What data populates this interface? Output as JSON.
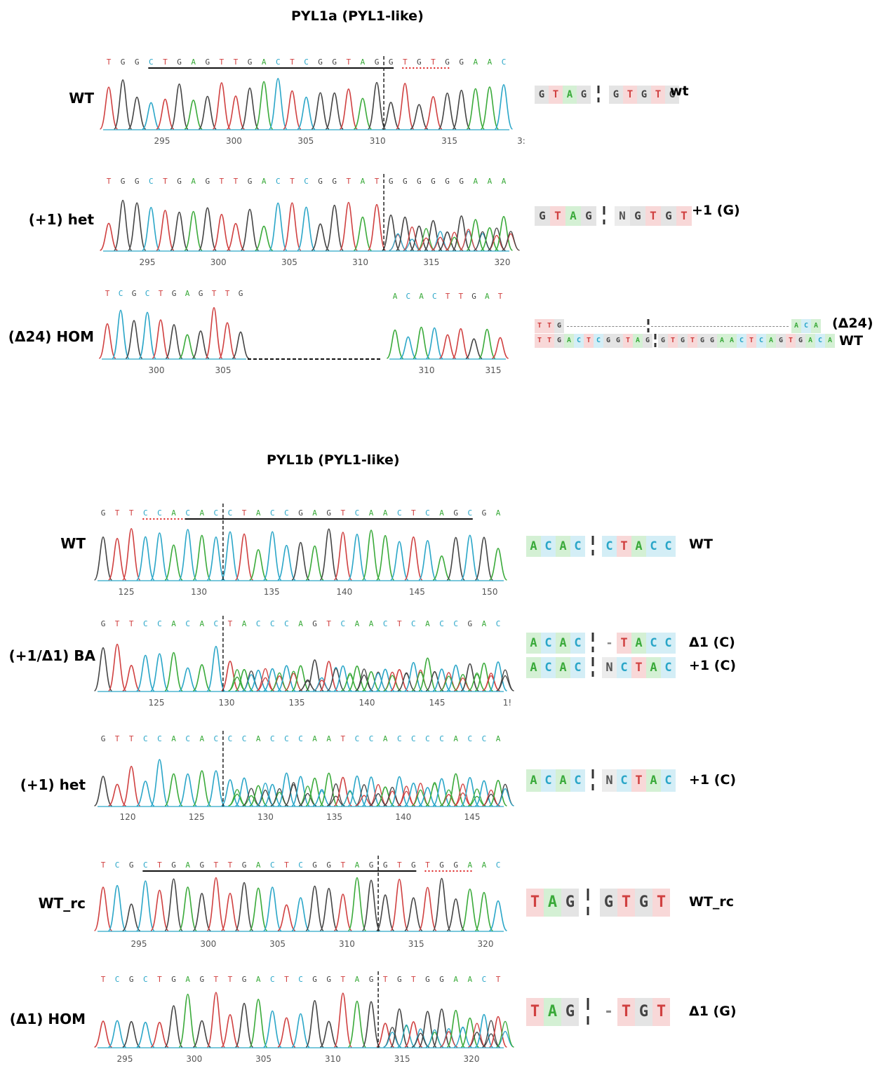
{
  "titles": {
    "pyl1a": "PYL1a (PYL1-like)",
    "pyl1b": "PYL1b (PYL1-like)"
  },
  "colors": {
    "A": "#3aaa3a",
    "C": "#2aa6c8",
    "G": "#444444",
    "T": "#d04040",
    "N": "#555555",
    "bg_A": "#d4f0d4",
    "bg_C": "#d4eef6",
    "bg_G": "#e4e4e4",
    "bg_T": "#f8d8d8",
    "bg_N": "#ececec"
  },
  "rows": [
    {
      "label": "WT",
      "seq": "TGGCTGAGTTGACTCGGTAGGTGTGGAAC",
      "ticks": [
        "295",
        "300",
        "305",
        "310",
        "315",
        "3:"
      ],
      "side": "wt"
    },
    {
      "label": "(+1) het",
      "seq": "TGGCTGAGTTGACTCGGTATGGGGGGAAA",
      "ticks": [
        "295",
        "300",
        "305",
        "310",
        "315",
        "320"
      ],
      "side": "+1 (G)"
    },
    {
      "label": "(Δ24) HOM",
      "seq_left": "TCGCTGAGTTG",
      "seq_right": "ACACTTGAT",
      "ticks_left": [
        "300",
        "305"
      ],
      "ticks_right": [
        "310",
        "315"
      ],
      "side": "(Δ24)",
      "side2": "WT"
    },
    {
      "label": "WT",
      "seq": "GTTCCACACCTACCGAGTCAACTCAGCGA",
      "ticks": [
        "125",
        "130",
        "135",
        "140",
        "145",
        "150"
      ],
      "side": "WT"
    },
    {
      "label": "(+1/Δ1) BA",
      "seq": "GTTCCACACTACCCAGTCAACTCACCGAC",
      "ticks": [
        "125",
        "130",
        "135",
        "140",
        "145",
        "1!"
      ],
      "side": "Δ1 (C)",
      "side2": "+1 (C)"
    },
    {
      "label": "(+1) het",
      "seq": "GTTCCACACCCACCCAATCCACCCCACCA",
      "ticks": [
        "120",
        "125",
        "130",
        "135",
        "140",
        "145"
      ],
      "side": "+1 (C)"
    },
    {
      "label": "WT_rc",
      "seq": "TCGCTGAGTTGACTCGGTAGGTGTGGAAC",
      "ticks": [
        "295",
        "300",
        "305",
        "310",
        "315",
        "320"
      ],
      "side": "WT_rc"
    },
    {
      "label": "(Δ1) HOM",
      "seq": "TCGCTGAGTTGACTCGGTAGTGTGGAACT",
      "ticks": [
        "295",
        "300",
        "305",
        "310",
        "315",
        "320"
      ],
      "side": "Δ1 (G)"
    }
  ],
  "alignments": [
    {
      "left": "GTAG",
      "right": "GTGTG"
    },
    {
      "left": "GTAG",
      "right": "NGTGT"
    },
    {
      "top_left": "TTG",
      "top_right": "ACA",
      "bottom_left": "TTGACTCGGTAG",
      "bottom_right": "GTGTGGAACTCAGTGACA"
    },
    {
      "left": "ACAC",
      "right": "CTACC"
    },
    {
      "left": "ACAC",
      "right": "-TACC",
      "left2": "ACAC",
      "right2": "NCTAC"
    },
    {
      "left": "ACAC",
      "right": "NCTAC"
    },
    {
      "left": "TAG",
      "right": "GTGT"
    },
    {
      "left": "TAG",
      "right": "-TGT"
    }
  ]
}
